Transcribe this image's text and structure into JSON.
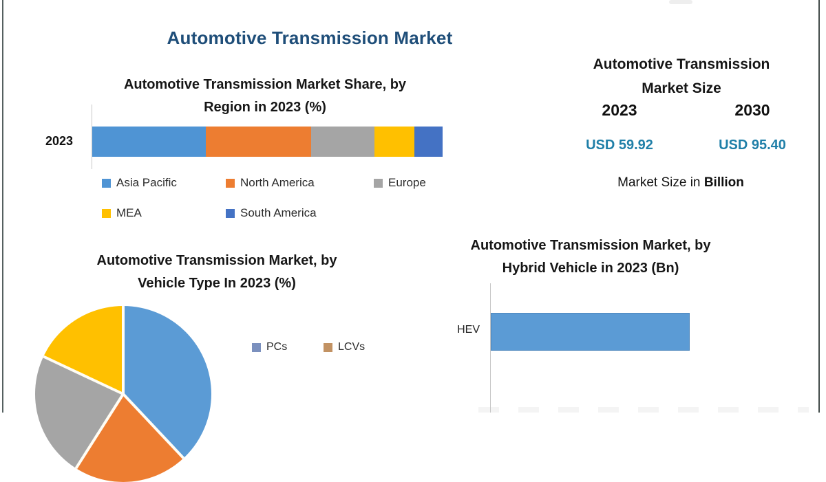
{
  "page": {
    "title": "Automotive Transmission Market",
    "title_color": "#1F4E79",
    "border_left_color": "#556060",
    "border_right_color": "#434c4b"
  },
  "region_chart": {
    "title_line1": "Automotive Transmission Market Share, by",
    "title_line2": "Region in 2023 (%)",
    "axis_label": "2023",
    "legend": [
      {
        "label": "Asia Pacific",
        "color": "#4F94D4"
      },
      {
        "label": "North America",
        "color": "#ED7D31"
      },
      {
        "label": "Europe",
        "color": "#A5A5A5"
      },
      {
        "label": "MEA",
        "color": "#FFC000"
      },
      {
        "label": "South America",
        "color": "#4472C4"
      }
    ]
  },
  "market_size_panel": {
    "title_line1": "Automotive Transmission",
    "title_line2": "Market Size",
    "year_left": "2023",
    "year_right": "2030",
    "value_left": "USD 59.92",
    "value_right": "USD 95.40",
    "value_color": "#1F7FA8",
    "caption_prefix": "Market Size in",
    "caption_bold": "Billion"
  },
  "vehicle_type_chart": {
    "title_line1": "Automotive Transmission Market, by",
    "title_line2": "Vehicle Type In 2023 (%)",
    "legend": [
      {
        "label": "PCs",
        "color": "#7B90BE"
      },
      {
        "label": "LCVs",
        "color": "#C29263"
      }
    ]
  },
  "hybrid_chart": {
    "title_line1": "Automotive Transmission Market, by",
    "title_line2": "Hybrid Vehicle in 2023 (Bn)",
    "category_label": "HEV",
    "bar_color": "#5B9BD5"
  },
  "chart_data": [
    {
      "id": "region-share",
      "type": "bar",
      "stacked": true,
      "orientation": "horizontal",
      "title": "Automotive Transmission Market Share, by Region in 2023 (%)",
      "categories": [
        "2023"
      ],
      "unit": "%",
      "series": [
        {
          "name": "Asia Pacific",
          "value": 32.5,
          "color": "#4F94D4"
        },
        {
          "name": "North America",
          "value": 30,
          "color": "#ED7D31"
        },
        {
          "name": "Europe",
          "value": 18,
          "color": "#A5A5A5"
        },
        {
          "name": "MEA",
          "value": 11.5,
          "color": "#FFC000"
        },
        {
          "name": "South America",
          "value": 8,
          "color": "#4472C4"
        }
      ],
      "legend_position": "bottom",
      "grid": false
    },
    {
      "id": "market-size",
      "type": "table",
      "title": "Automotive Transmission Market Size",
      "unit": "USD Billion",
      "columns": [
        "2023",
        "2030"
      ],
      "values": [
        59.92,
        95.4
      ]
    },
    {
      "id": "vehicle-type",
      "type": "pie",
      "title": "Automotive Transmission Market, by Vehicle Type In 2023 (%)",
      "unit": "%",
      "start_angle_deg": 0,
      "slices": [
        {
          "label": "PCs",
          "value": 38,
          "color": "#5B9BD5"
        },
        {
          "label": "LCVs",
          "value": 21,
          "color": "#ED7D31"
        },
        {
          "label": "",
          "value": 23,
          "color": "#A5A5A5"
        },
        {
          "label": "",
          "value": 18,
          "color": "#FFC000"
        }
      ],
      "legend_position": "right"
    },
    {
      "id": "hybrid-vehicle",
      "type": "bar",
      "orientation": "horizontal",
      "title": "Automotive Transmission Market, by Hybrid Vehicle in 2023 (Bn)",
      "unit": "Bn",
      "categories": [
        "HEV"
      ],
      "values": [
        null
      ],
      "grid": false
    }
  ]
}
